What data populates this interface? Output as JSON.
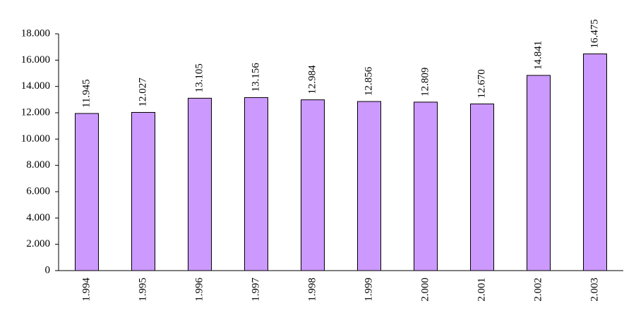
{
  "chart_data": {
    "type": "bar",
    "categories": [
      "1.994",
      "1.995",
      "1.996",
      "1.997",
      "1.998",
      "1.999",
      "2.000",
      "2.001",
      "2.002",
      "2.003"
    ],
    "values": [
      11945,
      12027,
      13105,
      13156,
      12984,
      12856,
      12809,
      12670,
      14841,
      16475
    ],
    "value_labels": [
      "11.945",
      "12.027",
      "13.105",
      "13.156",
      "12.984",
      "12.856",
      "12.809",
      "12.670",
      "14.841",
      "16.475"
    ],
    "color": "#cc99ff",
    "ylim": [
      0,
      18000
    ],
    "yticks": [
      0,
      {
        "value": 2000,
        "label": "2.000"
      },
      {
        "value": 4000,
        "label": "4.000"
      },
      {
        "value": 6000,
        "label": "6.000"
      },
      {
        "value": 8000,
        "label": "8.000"
      },
      {
        "value": 10000,
        "label": "10.000"
      },
      {
        "value": 12000,
        "label": "12.000"
      },
      {
        "value": 14000,
        "label": "14.000"
      },
      {
        "value": 16000,
        "label": "16.000"
      },
      {
        "value": 18000,
        "label": "18.000"
      }
    ],
    "grid": false
  }
}
